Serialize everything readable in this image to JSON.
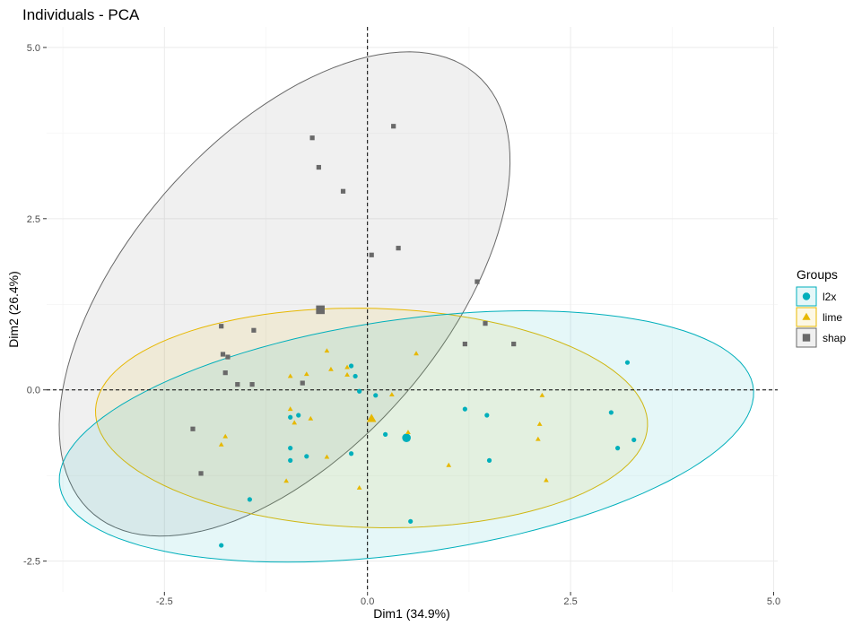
{
  "chart_data": {
    "type": "scatter",
    "title": "Individuals - PCA",
    "xlabel": "Dim1 (34.9%)",
    "ylabel": "Dim2 (26.4%)",
    "xlim": [
      -3.95,
      5.05
    ],
    "ylim": [
      -2.95,
      5.3
    ],
    "xticks": [
      -2.5,
      0.0,
      2.5,
      5.0
    ],
    "xtick_labels": [
      "-2.5",
      "0.0",
      "2.5",
      "5.0"
    ],
    "yticks": [
      -2.5,
      0.0,
      2.5,
      5.0
    ],
    "ytick_labels": [
      "-2.5",
      "0.0",
      "2.5",
      "5.0"
    ],
    "grid": true,
    "reference_lines": {
      "x": 0,
      "y": 0,
      "style": "dashed"
    },
    "legend": {
      "title": "Groups",
      "position": "right"
    },
    "series": [
      {
        "name": "l2x",
        "color": "#00AFBB",
        "marker": "circle",
        "ellipse": {
          "center": [
            0.48,
            -0.68
          ],
          "rx": 4.33,
          "ry": 1.7,
          "angle_deg": 10
        },
        "centroid": [
          0.48,
          -0.7
        ],
        "points": [
          [
            -1.8,
            -2.27
          ],
          [
            -1.45,
            -1.6
          ],
          [
            -0.95,
            -0.85
          ],
          [
            -0.95,
            -1.03
          ],
          [
            -0.95,
            -0.4
          ],
          [
            -0.85,
            -0.37
          ],
          [
            -0.75,
            -0.97
          ],
          [
            -0.2,
            0.35
          ],
          [
            -0.2,
            -0.93
          ],
          [
            -0.1,
            -0.02
          ],
          [
            0.1,
            -0.08
          ],
          [
            0.22,
            -0.65
          ],
          [
            0.53,
            -1.92
          ],
          [
            1.2,
            -0.28
          ],
          [
            1.47,
            -0.37
          ],
          [
            1.5,
            -1.03
          ],
          [
            3.0,
            -0.33
          ],
          [
            3.08,
            -0.85
          ],
          [
            3.2,
            0.4
          ],
          [
            3.28,
            -0.73
          ],
          [
            -0.15,
            0.2
          ]
        ]
      },
      {
        "name": "lime",
        "color": "#E7B800",
        "marker": "triangle",
        "ellipse": {
          "center": [
            0.05,
            -0.41
          ],
          "rx": 3.4,
          "ry": 1.6,
          "angle_deg": -2
        },
        "centroid": [
          0.05,
          -0.42
        ],
        "points": [
          [
            -1.8,
            -0.8
          ],
          [
            -1.75,
            -0.68
          ],
          [
            -1.0,
            -1.33
          ],
          [
            -0.95,
            -0.28
          ],
          [
            -0.95,
            0.2
          ],
          [
            -0.9,
            -0.48
          ],
          [
            -0.75,
            0.23
          ],
          [
            -0.7,
            -0.42
          ],
          [
            -0.5,
            0.57
          ],
          [
            -0.45,
            0.3
          ],
          [
            -0.25,
            0.22
          ],
          [
            -0.25,
            0.33
          ],
          [
            -0.5,
            -0.98
          ],
          [
            -0.1,
            -1.43
          ],
          [
            0.3,
            -0.07
          ],
          [
            0.5,
            -0.62
          ],
          [
            0.6,
            0.53
          ],
          [
            1.0,
            -1.1
          ],
          [
            2.1,
            -0.72
          ],
          [
            2.12,
            -0.5
          ],
          [
            2.15,
            -0.08
          ],
          [
            2.2,
            -1.32
          ]
        ]
      },
      {
        "name": "shap",
        "color": "#696969",
        "marker": "square",
        "ellipse": {
          "center": [
            -1.02,
            1.4
          ],
          "rx": 4.0,
          "ry": 2.05,
          "angle_deg": 57
        },
        "centroid": [
          -0.58,
          1.17
        ],
        "points": [
          [
            -2.15,
            -0.57
          ],
          [
            -2.05,
            -1.22
          ],
          [
            -1.8,
            0.93
          ],
          [
            -1.78,
            0.52
          ],
          [
            -1.75,
            0.25
          ],
          [
            -1.72,
            0.48
          ],
          [
            -1.6,
            0.08
          ],
          [
            -1.42,
            0.08
          ],
          [
            -1.4,
            0.87
          ],
          [
            -0.8,
            0.1
          ],
          [
            -0.68,
            3.68
          ],
          [
            -0.6,
            3.25
          ],
          [
            -0.3,
            2.9
          ],
          [
            0.05,
            1.97
          ],
          [
            0.32,
            3.85
          ],
          [
            0.38,
            2.07
          ],
          [
            1.2,
            0.67
          ],
          [
            1.35,
            1.58
          ],
          [
            1.45,
            0.97
          ],
          [
            1.8,
            0.67
          ]
        ]
      }
    ]
  }
}
